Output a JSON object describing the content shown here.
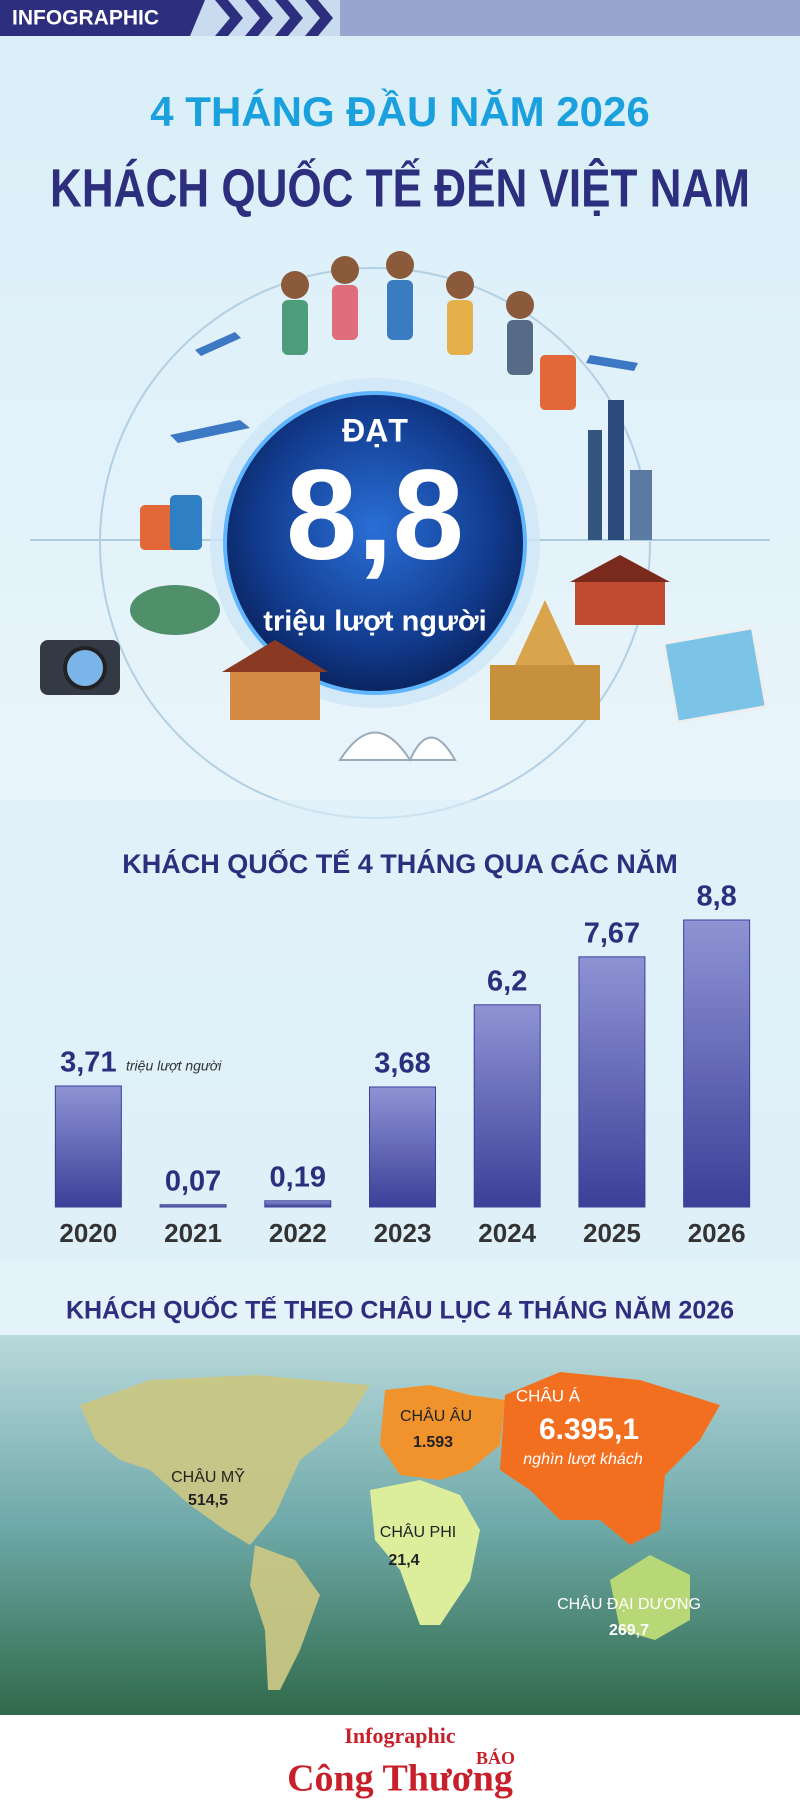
{
  "header": {
    "tag": "INFOGRAPHIC",
    "title_line1": "4 THÁNG ĐẦU NĂM 2026",
    "title_line2": "KHÁCH QUỐC TẾ ĐẾN VIỆT NAM"
  },
  "hero": {
    "label": "ĐẠT",
    "value": "8,8",
    "unit": "triệu lượt người"
  },
  "chart_data": {
    "type": "bar",
    "title": "KHÁCH QUỐC TẾ 4 THÁNG QUA CÁC NĂM",
    "categories": [
      "2020",
      "2021",
      "2022",
      "2023",
      "2024",
      "2025",
      "2026"
    ],
    "values": [
      3.71,
      0.07,
      0.19,
      3.68,
      6.2,
      7.67,
      8.8
    ],
    "value_labels": [
      "3,71",
      "0,07",
      "0,19",
      "3,68",
      "6,2",
      "7,67",
      "8,8"
    ],
    "annotation": "triệu lượt người",
    "color": "#3d3f98"
  },
  "map": {
    "title": "KHÁCH QUỐC TẾ THEO CHÂU LỤC  4 THÁNG NĂM 2026",
    "regions": [
      {
        "name": "CHÂU MỸ",
        "value": "514,5"
      },
      {
        "name": "CHÂU ÂU",
        "value": "1.593"
      },
      {
        "name": "CHÂU Á",
        "value": "6.395,1",
        "unit": "nghìn lượt khách"
      },
      {
        "name": "CHÂU PHI",
        "value": "21,4"
      },
      {
        "name": "CHÂU ĐẠI DƯƠNG",
        "value": "269,7"
      }
    ]
  },
  "footer": {
    "label": "Infographic",
    "brand_top": "BÁO",
    "brand": "Công Thương"
  }
}
